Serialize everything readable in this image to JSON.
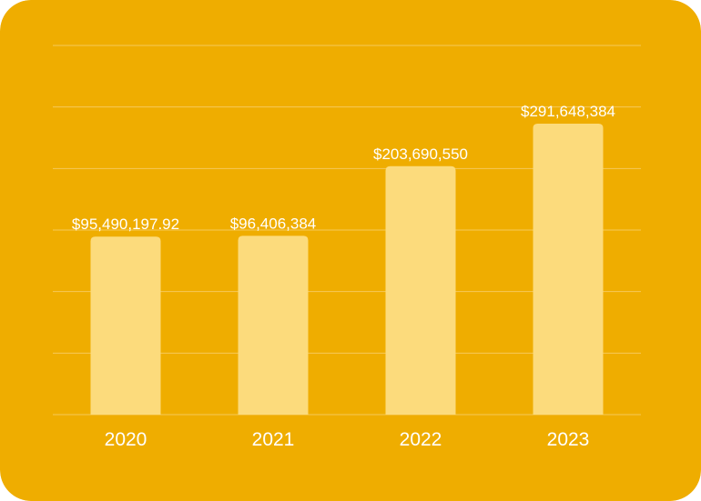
{
  "colors": {
    "background": "#EFAD00",
    "bar": "#FCDB7C",
    "gridline": "#F6C95A",
    "text": "#FFFFFF"
  },
  "chart_data": {
    "type": "bar",
    "categories": [
      "2020",
      "2021",
      "2022",
      "2023"
    ],
    "values": [
      95490197.92,
      96406384,
      203690550,
      291648384
    ],
    "value_labels": [
      "$95,490,197.92",
      "$96,406,384",
      "$203,690,550",
      "$291,648,384"
    ],
    "title": "",
    "xlabel": "",
    "ylabel": "",
    "yaxis_scale": "non-linear (bar heights not proportional to values)",
    "gridlines": true,
    "legend": "none"
  }
}
